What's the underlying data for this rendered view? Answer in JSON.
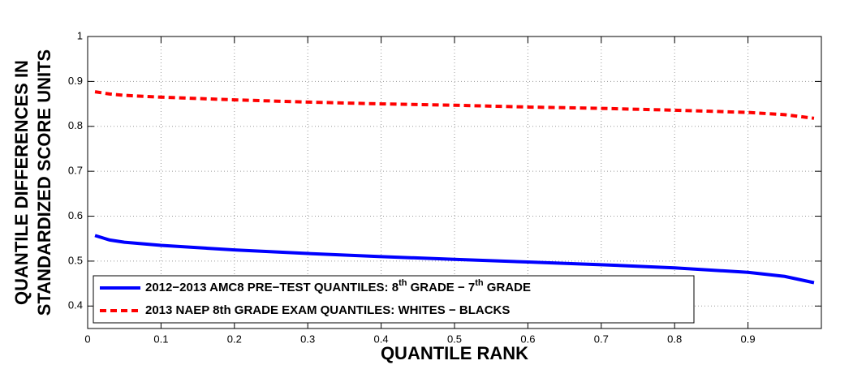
{
  "chart_data": {
    "type": "line",
    "xlabel": "QUANTILE RANK",
    "ylabel": [
      "QUANTILE DIFFERENCES IN",
      "STANDARDIZED SCORE UNITS"
    ],
    "x": [
      0.01,
      0.03,
      0.05,
      0.1,
      0.2,
      0.3,
      0.4,
      0.5,
      0.6,
      0.7,
      0.8,
      0.9,
      0.95,
      0.99
    ],
    "series": [
      {
        "name": "2012−2013 AMC8 PRE−TEST QUANTILES: 8th GRADE − 7th GRADE",
        "color": "#0000ff",
        "dashed": false,
        "values": [
          0.557,
          0.547,
          0.542,
          0.535,
          0.525,
          0.517,
          0.51,
          0.504,
          0.498,
          0.492,
          0.485,
          0.475,
          0.466,
          0.452
        ]
      },
      {
        "name": "2013 NAEP 8th GRADE EXAM QUANTILES: WHITES − BLACKS",
        "color": "#ff0000",
        "dashed": true,
        "values": [
          0.877,
          0.872,
          0.869,
          0.865,
          0.859,
          0.854,
          0.85,
          0.847,
          0.843,
          0.84,
          0.836,
          0.831,
          0.826,
          0.818
        ]
      }
    ],
    "xlim": [
      0,
      1
    ],
    "xticks": [
      0,
      0.1,
      0.2,
      0.3,
      0.4,
      0.5,
      0.6,
      0.7,
      0.8,
      0.9
    ],
    "ylim": [
      0.35,
      1
    ],
    "yticks": [
      0.4,
      0.5,
      0.6,
      0.7,
      0.8,
      0.9,
      1
    ],
    "grid": true,
    "legend": "lower left"
  }
}
